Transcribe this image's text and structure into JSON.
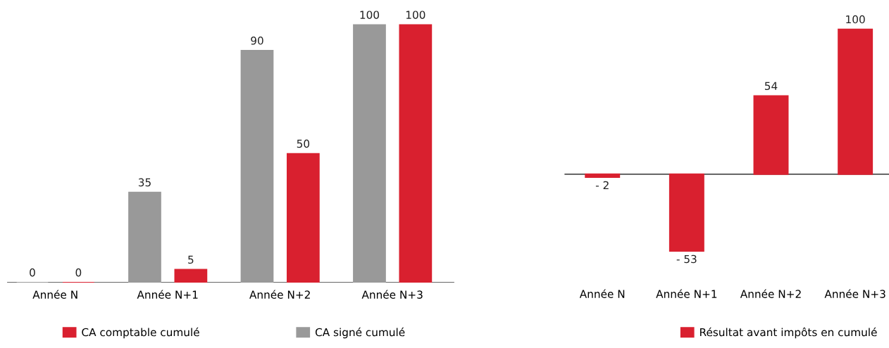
{
  "chart_data": [
    {
      "type": "bar",
      "categories": [
        "Année N",
        "Année N+1",
        "Année N+2",
        "Année N+3"
      ],
      "series": [
        {
          "name": "CA signé cumulé",
          "color": "#999999",
          "values": [
            0,
            35,
            90,
            100
          ]
        },
        {
          "name": "CA comptable cumulé",
          "color": "#d9202f",
          "values": [
            0,
            5,
            50,
            100
          ]
        }
      ],
      "data_labels": true,
      "legend": "bottom left",
      "grid": false
    },
    {
      "type": "bar",
      "categories": [
        "Année N",
        "Année N+1",
        "Année N+2",
        "Année N+3"
      ],
      "series": [
        {
          "name": "Résultat avant impôts en cumulé",
          "color": "#d9202f",
          "values": [
            -2,
            -53,
            54,
            100
          ],
          "value_labels": [
            "- 2",
            "- 53",
            "54",
            "100"
          ]
        }
      ],
      "legend": "bottom",
      "grid": false
    }
  ]
}
